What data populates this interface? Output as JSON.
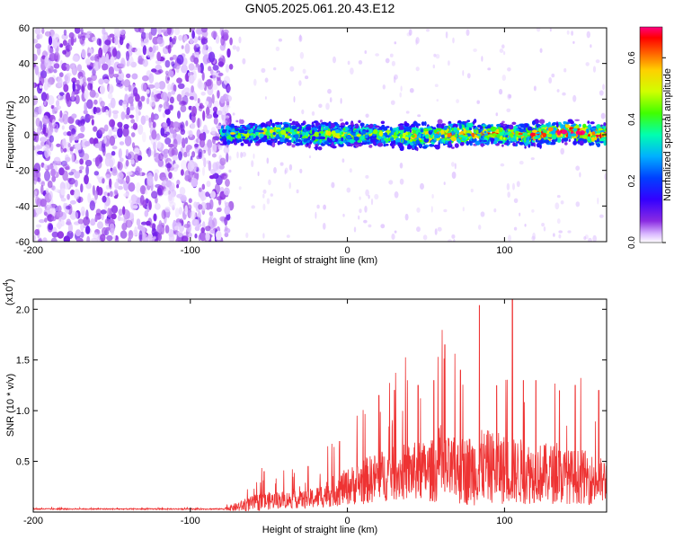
{
  "figure": {
    "title": "GN05.2025.061.20.43.E12"
  },
  "chart_data": [
    {
      "type": "heatmap",
      "xlabel": "Height of straight line (km)",
      "ylabel": "Frequency (Hz)",
      "xlim": [
        -200,
        165
      ],
      "ylim": [
        -60,
        60
      ],
      "xticks": [
        -200,
        -100,
        0,
        100
      ],
      "yticks": [
        -60,
        -40,
        -20,
        0,
        20,
        40,
        60
      ],
      "grid": false,
      "colorbar": {
        "label": "Normalized spectral amplitude",
        "range": [
          0.0,
          0.7
        ],
        "ticks": [
          "0.0",
          "0.2",
          "0.4",
          "0.6"
        ],
        "colormap": [
          "#ffffff",
          "#d9b8ff",
          "#8a2be2",
          "#3300ff",
          "#0040ff",
          "#00b0ff",
          "#00ffb0",
          "#40ff00",
          "#d0ff00",
          "#ffd000",
          "#ff6000",
          "#ff0000",
          "#ff0080"
        ]
      },
      "regions": [
        {
          "x_range": [
            -200,
            -80
          ],
          "description_value": "uniform purple noise, amplitude ~0.02-0.08 across all frequencies"
        },
        {
          "x_range": [
            -80,
            165
          ],
          "band_center_hz": 0,
          "band_halfwidth_hz": 8,
          "peak_amplitude": 0.7,
          "noise_outside_band": "sparse light purple"
        }
      ],
      "band_profile": {
        "x": [
          -80,
          -60,
          -40,
          -20,
          0,
          20,
          40,
          60,
          80,
          100,
          120,
          140,
          160
        ],
        "center_hz": [
          0,
          1,
          1,
          0,
          0,
          0,
          -1,
          0,
          1,
          0,
          0,
          2,
          0
        ],
        "halfwidth_hz": [
          8,
          8,
          9,
          10,
          9,
          9,
          10,
          9,
          9,
          8,
          9,
          8,
          8
        ],
        "peak_amplitude": [
          0.45,
          0.5,
          0.5,
          0.45,
          0.5,
          0.45,
          0.5,
          0.6,
          0.6,
          0.55,
          0.6,
          0.7,
          0.65
        ]
      }
    },
    {
      "type": "line",
      "xlabel": "Height of straight line (km)",
      "ylabel": "SNR (10 * v/v)",
      "y_multiplier": "(x10^4)",
      "y_multiplier_base": "(x10",
      "y_multiplier_exp": "4",
      "y_multiplier_close": ")",
      "xlim": [
        -200,
        165
      ],
      "ylim": [
        0,
        2.1
      ],
      "xticks": [
        -200,
        -100,
        0,
        100
      ],
      "yticks": [
        0.5,
        1.0,
        1.5,
        2.0
      ],
      "ytick_labels": [
        "0.5",
        "1.0",
        "1.5",
        "2.0"
      ],
      "grid": false,
      "series": [
        {
          "color": "#ee3333",
          "x": [
            -200,
            -80,
            -70,
            -62,
            -55,
            -45,
            -40,
            -30,
            -20,
            -10,
            0,
            10,
            20,
            30,
            40,
            50,
            60,
            62,
            70,
            80,
            85,
            90,
            100,
            105,
            110,
            120,
            130,
            140,
            150,
            160,
            165
          ],
          "baseline": [
            0.03,
            0.03,
            0.05,
            0.08,
            0.1,
            0.12,
            0.12,
            0.12,
            0.14,
            0.2,
            0.25,
            0.3,
            0.35,
            0.38,
            0.4,
            0.4,
            0.42,
            0.42,
            0.4,
            0.42,
            0.45,
            0.45,
            0.42,
            0.4,
            0.4,
            0.38,
            0.38,
            0.35,
            0.35,
            0.3,
            0.3
          ],
          "noise_amplitude": [
            0.01,
            0.01,
            0.08,
            0.12,
            0.15,
            0.14,
            0.14,
            0.14,
            0.18,
            0.25,
            0.3,
            0.38,
            0.42,
            0.45,
            0.48,
            0.5,
            0.55,
            0.55,
            0.55,
            0.6,
            0.6,
            0.6,
            0.58,
            0.55,
            0.55,
            0.5,
            0.5,
            0.45,
            0.45,
            0.4,
            0.4
          ],
          "peaks": [
            {
              "x": -53,
              "y": 0.4
            },
            {
              "x": -25,
              "y": 0.45
            },
            {
              "x": -5,
              "y": 0.7
            },
            {
              "x": 20,
              "y": 1.15
            },
            {
              "x": 30,
              "y": 1.2
            },
            {
              "x": 45,
              "y": 1.25
            },
            {
              "x": 55,
              "y": 1.3
            },
            {
              "x": 62,
              "y": 1.65
            },
            {
              "x": 72,
              "y": 1.4
            },
            {
              "x": 84,
              "y": 2.04
            },
            {
              "x": 95,
              "y": 1.25
            },
            {
              "x": 105,
              "y": 2.1
            },
            {
              "x": 112,
              "y": 1.3
            },
            {
              "x": 120,
              "y": 1.3
            },
            {
              "x": 135,
              "y": 1.2
            },
            {
              "x": 145,
              "y": 1.25
            },
            {
              "x": 160,
              "y": 1.2
            }
          ]
        }
      ]
    }
  ]
}
